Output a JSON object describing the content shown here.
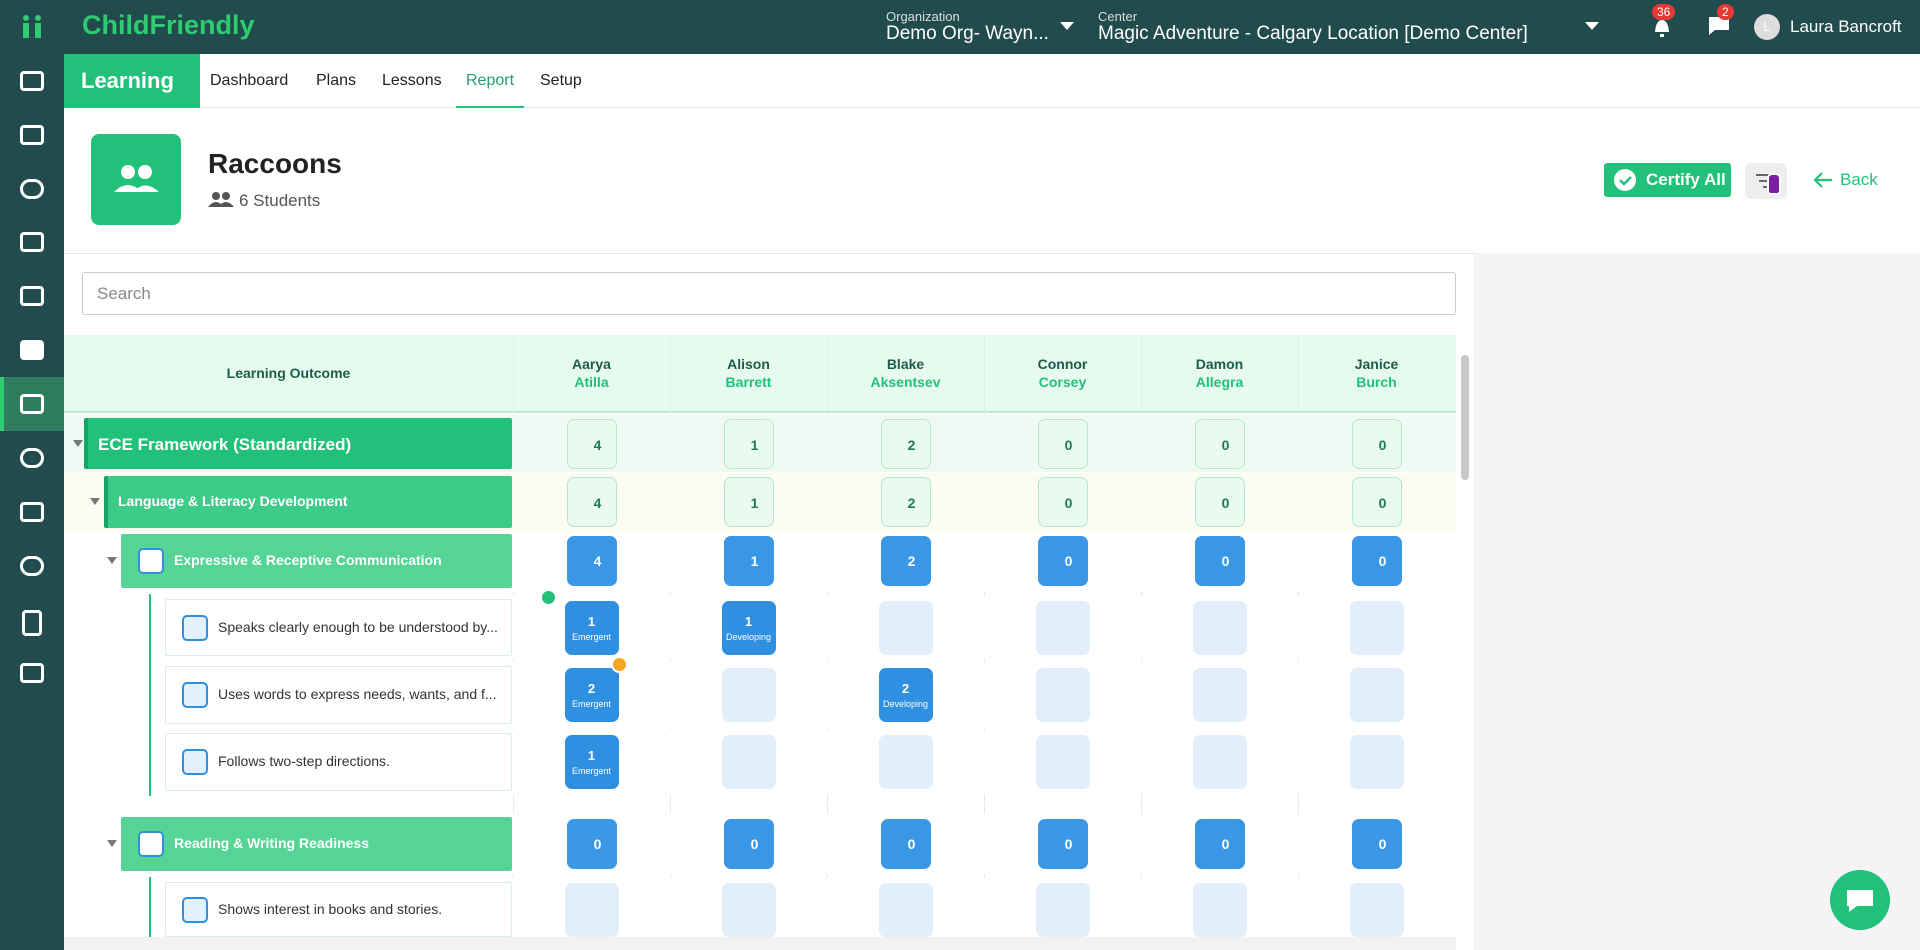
{
  "brand": "ChildFriendly",
  "topbar": {
    "org_label": "Organization",
    "org_value": "Demo Org- Wayn...",
    "center_label": "Center",
    "center_value": "Magic Adventure - Calgary Location [Demo Center]",
    "notifications": 36,
    "messages": 2,
    "avatar": "L",
    "user": "Laura Bancroft"
  },
  "nav": {
    "section": "Learning",
    "tabs": [
      "Dashboard",
      "Plans",
      "Lessons",
      "Report",
      "Setup"
    ],
    "active_tab": 3
  },
  "group": {
    "name": "Raccoons",
    "students": "6 Students"
  },
  "actions": {
    "certify": "Certify All",
    "back": "Back"
  },
  "search_placeholder": "Search",
  "table": {
    "outcome_header": "Learning Outcome",
    "students": [
      {
        "first": "Aarya",
        "last": "Atilla"
      },
      {
        "first": "Alison",
        "last": "Barrett"
      },
      {
        "first": "Blake",
        "last": "Aksentsev"
      },
      {
        "first": "Connor",
        "last": "Corsey"
      },
      {
        "first": "Damon",
        "last": "Allegra"
      },
      {
        "first": "Janice",
        "last": "Burch"
      }
    ],
    "rows": [
      {
        "label": "ECE Framework (Standardized)",
        "level": 0,
        "cells": [
          4,
          1,
          2,
          0,
          0,
          0
        ]
      },
      {
        "label": "Language & Literacy Development",
        "level": 1,
        "cells": [
          4,
          1,
          2,
          0,
          0,
          0
        ]
      },
      {
        "label": "Expressive & Receptive Communication",
        "level": 2,
        "cells": [
          4,
          1,
          2,
          0,
          0,
          0
        ]
      },
      {
        "label": "Speaks clearly enough to be understood by...",
        "level": 3,
        "cells": [
          {
            "count": 1,
            "level": "Emergent"
          },
          {
            "count": 1,
            "level": "Developing"
          },
          null,
          null,
          null,
          null
        ]
      },
      {
        "label": "Uses words to express needs, wants, and f...",
        "level": 3,
        "cells": [
          {
            "count": 2,
            "level": "Emergent"
          },
          null,
          {
            "count": 2,
            "level": "Developing"
          },
          null,
          null,
          null
        ]
      },
      {
        "label": "Follows two-step directions.",
        "level": 3,
        "cells": [
          {
            "count": 1,
            "level": "Emergent"
          },
          null,
          null,
          null,
          null,
          null
        ]
      },
      {
        "label": "Reading & Writing Readiness",
        "level": 2,
        "cells": [
          0,
          0,
          0,
          0,
          0,
          0
        ]
      },
      {
        "label": "Shows interest in books and stories.",
        "level": 3,
        "cells": [
          null,
          null,
          null,
          null,
          null,
          null
        ]
      }
    ]
  }
}
